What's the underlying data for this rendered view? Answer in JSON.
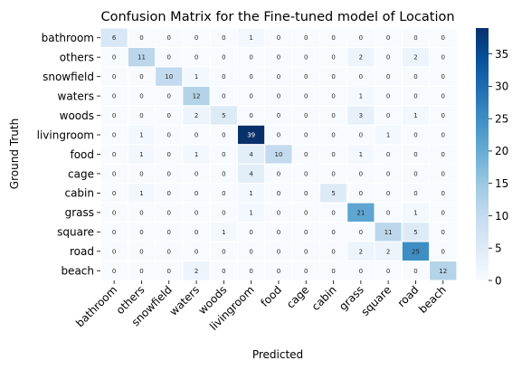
{
  "chart_data": {
    "type": "heatmap",
    "title": "Confusion Matrix for the Fine-tuned model of Location",
    "xlabel": "Predicted",
    "ylabel": "Ground Truth",
    "row_labels": [
      "bathroom",
      "others",
      "snowfield",
      "waters",
      "woods",
      "livingroom",
      "food",
      "cage",
      "cabin",
      "grass",
      "square",
      "road",
      "beach"
    ],
    "col_labels": [
      "bathroom",
      "others",
      "snowfield",
      "waters",
      "woods",
      "livingroom",
      "food",
      "cage",
      "cabin",
      "grass",
      "square",
      "road",
      "beach"
    ],
    "values": [
      [
        6,
        0,
        0,
        0,
        0,
        1,
        0,
        0,
        0,
        0,
        0,
        0,
        0
      ],
      [
        0,
        11,
        0,
        0,
        0,
        0,
        0,
        0,
        0,
        2,
        0,
        2,
        0
      ],
      [
        0,
        0,
        10,
        1,
        0,
        0,
        0,
        0,
        0,
        0,
        0,
        0,
        0
      ],
      [
        0,
        0,
        0,
        12,
        0,
        0,
        0,
        0,
        0,
        1,
        0,
        0,
        0
      ],
      [
        0,
        0,
        0,
        2,
        5,
        0,
        0,
        0,
        0,
        3,
        0,
        1,
        0
      ],
      [
        0,
        1,
        0,
        0,
        0,
        39,
        0,
        0,
        0,
        0,
        1,
        0,
        0
      ],
      [
        0,
        1,
        0,
        1,
        0,
        4,
        10,
        0,
        0,
        1,
        0,
        0,
        0
      ],
      [
        0,
        0,
        0,
        0,
        0,
        4,
        0,
        0,
        0,
        0,
        0,
        0,
        0
      ],
      [
        0,
        1,
        0,
        0,
        0,
        1,
        0,
        0,
        5,
        0,
        0,
        0,
        0
      ],
      [
        0,
        0,
        0,
        0,
        0,
        1,
        0,
        0,
        0,
        21,
        0,
        1,
        0
      ],
      [
        0,
        0,
        0,
        0,
        1,
        0,
        0,
        0,
        0,
        0,
        11,
        5,
        0
      ],
      [
        0,
        0,
        0,
        0,
        0,
        0,
        0,
        0,
        0,
        2,
        2,
        25,
        0
      ],
      [
        0,
        0,
        0,
        2,
        0,
        0,
        0,
        0,
        0,
        0,
        0,
        0,
        12
      ]
    ],
    "colorbar": {
      "min": 0,
      "max": 39,
      "ticks": [
        0,
        5,
        10,
        15,
        20,
        25,
        30,
        35
      ],
      "colormap": "Blues"
    },
    "grid": false
  }
}
